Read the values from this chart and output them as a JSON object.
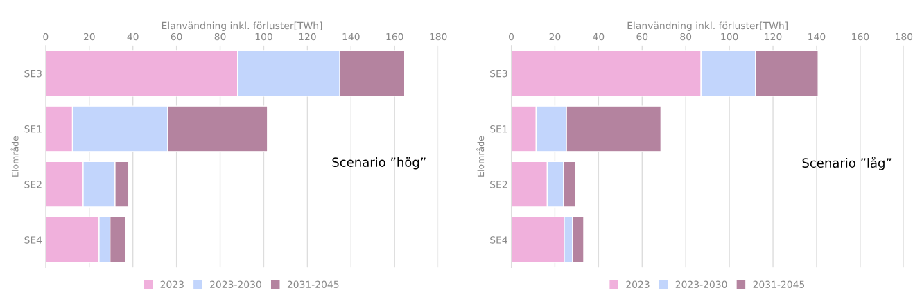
{
  "chart_data": [
    {
      "type": "bar",
      "orientation": "horizontal",
      "stacked": true,
      "xlabel": "Elanvändning inkl. förluster[TWh]",
      "ylabel": "Elområde",
      "categories": [
        "SE3",
        "SE1",
        "SE2",
        "SE4"
      ],
      "series": [
        {
          "name": "2023",
          "color": "#f0b0dc",
          "values": [
            88,
            12.3,
            17.2,
            24.5
          ]
        },
        {
          "name": "2023-2030",
          "color": "#c2d5fc",
          "values": [
            46.9,
            43.7,
            14.6,
            5
          ]
        },
        {
          "name": "2031-2045",
          "color": "#b4839f",
          "values": [
            29.7,
            45.7,
            6.1,
            7.1
          ]
        }
      ],
      "xlim": [
        0,
        180
      ],
      "xticks": [
        0,
        20,
        40,
        60,
        80,
        100,
        120,
        140,
        160,
        180
      ],
      "grid": "x",
      "legend": "bottom",
      "annotations": [
        "Scenario ”hög”"
      ]
    },
    {
      "type": "bar",
      "orientation": "horizontal",
      "stacked": true,
      "xlabel": "Elanvändning inkl. förluster[TWh]",
      "ylabel": "Elområde",
      "categories": [
        "SE3",
        "SE1",
        "SE2",
        "SE4"
      ],
      "series": [
        {
          "name": "2023",
          "color": "#f0b0dc",
          "values": [
            87,
            11.4,
            16.5,
            24.3
          ]
        },
        {
          "name": "2023-2030",
          "color": "#c2d5fc",
          "values": [
            25,
            13.9,
            7.5,
            3.8
          ]
        },
        {
          "name": "2031-2045",
          "color": "#b4839f",
          "values": [
            28.7,
            43.3,
            5.4,
            5.1
          ]
        }
      ],
      "xlim": [
        0,
        180
      ],
      "xticks": [
        0,
        20,
        40,
        60,
        80,
        100,
        120,
        140,
        160,
        180
      ],
      "grid": "x",
      "legend": "bottom",
      "annotations": [
        "Scenario ”låg”"
      ]
    }
  ]
}
